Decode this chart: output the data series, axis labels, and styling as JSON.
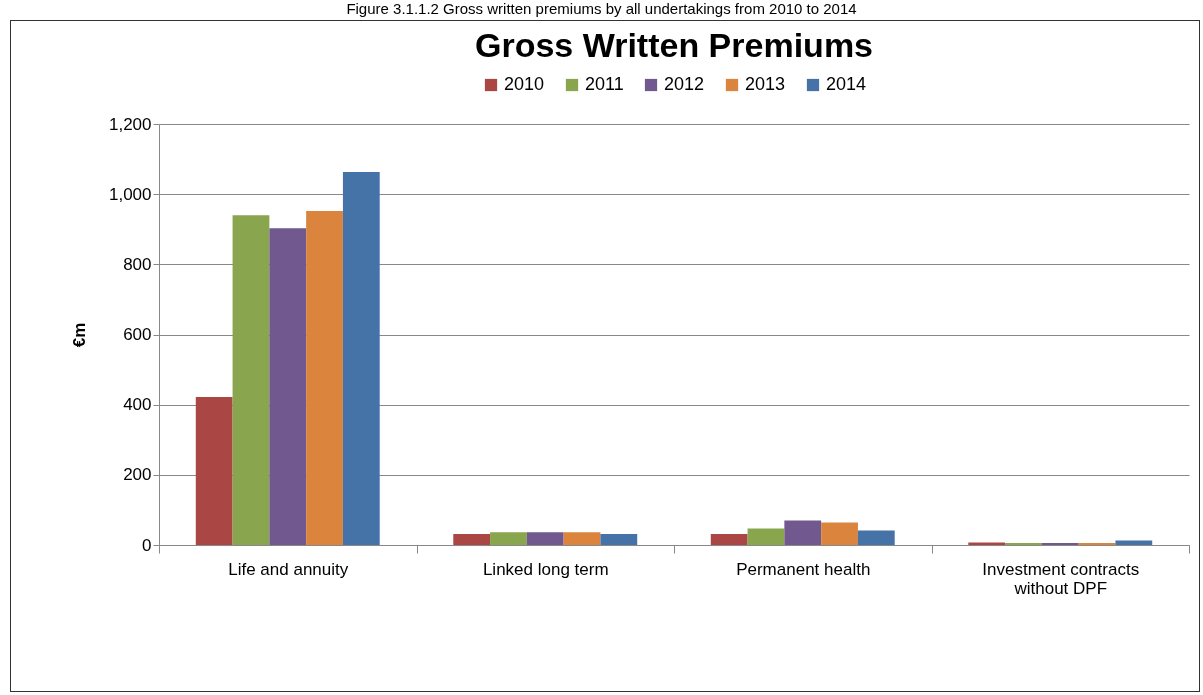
{
  "chart_data": {
    "type": "bar",
    "title": "Gross Written Premiums",
    "annotations": [
      "Figure 3.1.1.2 Gross written premiums by all undertakings from 2010 to 2014"
    ],
    "ylabel": "€m",
    "categories": [
      "Life and annuity",
      "Linked long term",
      "Permanent health",
      "Investment contracts without DPF"
    ],
    "series": [
      {
        "name": "2010",
        "color": "#aa4643",
        "values": [
          422,
          31,
          31,
          7
        ]
      },
      {
        "name": "2011",
        "color": "#89a54e",
        "values": [
          940,
          36,
          47,
          6
        ]
      },
      {
        "name": "2012",
        "color": "#71588f",
        "values": [
          903,
          36,
          70,
          6
        ]
      },
      {
        "name": "2013",
        "color": "#db843d",
        "values": [
          952,
          36,
          64,
          6
        ]
      },
      {
        "name": "2014",
        "color": "#4572a7",
        "values": [
          1063,
          31,
          41,
          13
        ]
      }
    ],
    "ylim": [
      0,
      1200
    ],
    "yticks": [
      0,
      200,
      400,
      600,
      800,
      {
        "value": 1000,
        "label": "1,000"
      },
      {
        "value": 1200,
        "label": "1,200"
      }
    ],
    "grid": "y",
    "legend": "top"
  }
}
